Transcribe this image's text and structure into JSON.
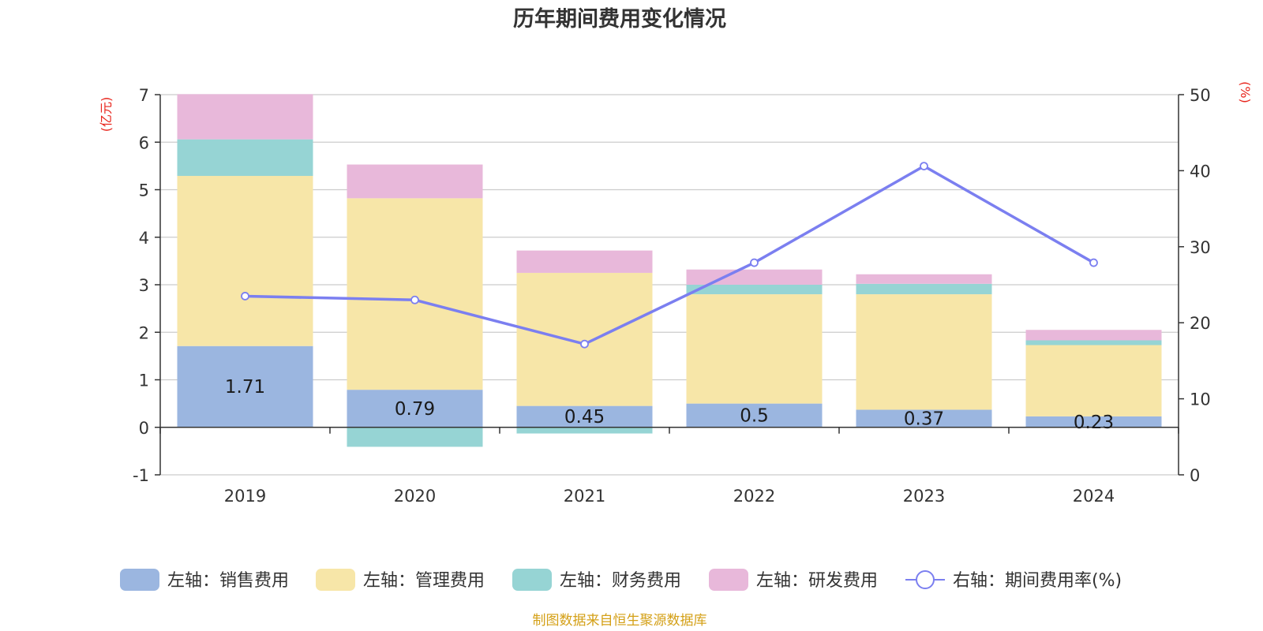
{
  "chart_data": {
    "type": "bar",
    "title": "历年期间费用变化情况",
    "categories": [
      "2019",
      "2020",
      "2021",
      "2022",
      "2023",
      "2024"
    ],
    "y_left": {
      "unit": "(亿元)",
      "min": -1,
      "max": 7,
      "ticks": [
        "-1",
        "0",
        "1",
        "2",
        "3",
        "4",
        "5",
        "6",
        "7"
      ]
    },
    "y_right": {
      "unit": "(%)",
      "min": 0,
      "max": 50,
      "ticks": [
        "0",
        "10",
        "20",
        "30",
        "40",
        "50"
      ]
    },
    "series": [
      {
        "name": "左轴：销售费用",
        "type": "bar",
        "axis": "left",
        "color": "#9bb6e0",
        "values": [
          1.71,
          0.79,
          0.45,
          0.5,
          0.37,
          0.23
        ],
        "labels": [
          "1.71",
          "0.79",
          "0.45",
          "0.5",
          "0.37",
          "0.23"
        ]
      },
      {
        "name": "左轴：管理费用",
        "type": "bar",
        "axis": "left",
        "color": "#f7e6a8",
        "values": [
          3.58,
          4.03,
          2.8,
          2.3,
          2.43,
          1.5
        ]
      },
      {
        "name": "左轴：财务费用",
        "type": "bar",
        "axis": "left",
        "color": "#96d4d4",
        "values": [
          0.77,
          -0.41,
          -0.13,
          0.2,
          0.22,
          0.1
        ]
      },
      {
        "name": "左轴：研发费用",
        "type": "bar",
        "axis": "left",
        "color": "#e8b8da",
        "values": [
          0.95,
          0.71,
          0.47,
          0.32,
          0.2,
          0.22
        ]
      },
      {
        "name": "右轴：期间费用率(%)",
        "type": "line",
        "axis": "right",
        "color": "#7b7ff0",
        "values": [
          23.5,
          23.0,
          17.2,
          27.9,
          40.6,
          27.9
        ]
      }
    ],
    "legend_position": "bottom",
    "grid": true
  },
  "source": "制图数据来自恒生聚源数据库"
}
